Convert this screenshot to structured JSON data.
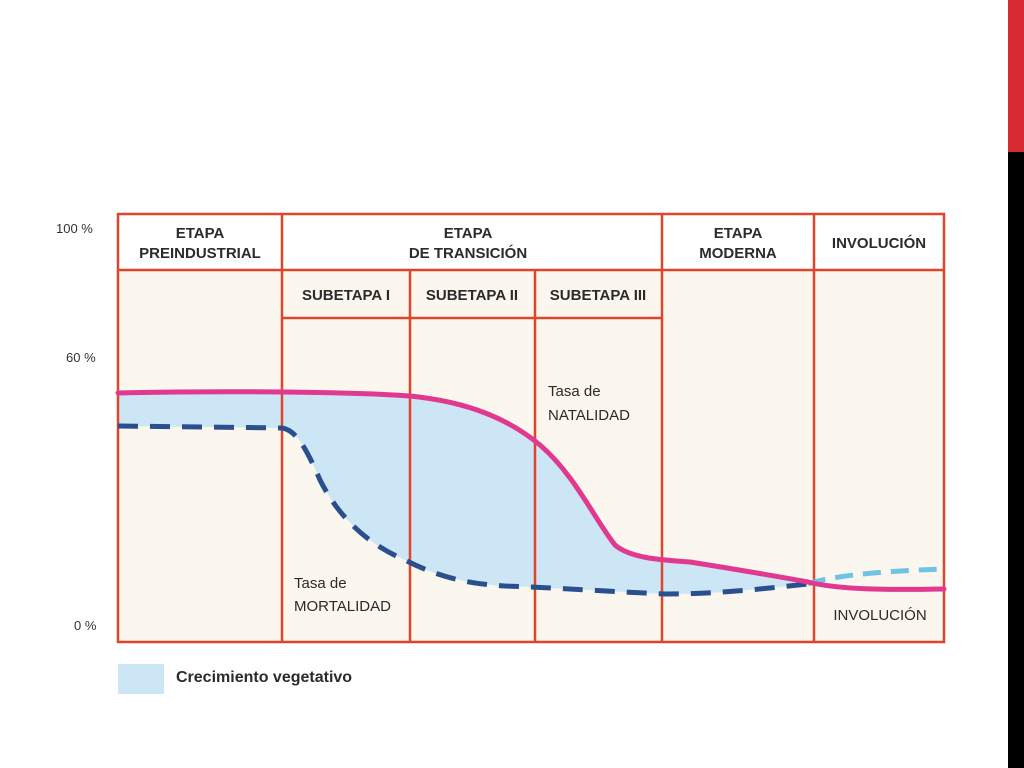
{
  "y_axis": {
    "top": "100 %",
    "mid": "60 %",
    "bottom": "0 %"
  },
  "stages": {
    "preindustrial": [
      "ETAPA",
      "PREINDUSTRIAL"
    ],
    "transicion": [
      "ETAPA",
      "DE TRANSICIÓN"
    ],
    "moderna": [
      "ETAPA",
      "MODERNA"
    ],
    "involucion": "INVOLUCIÓN"
  },
  "substages": [
    "SUBETAPA I",
    "SUBETAPA II",
    "SUBETAPA III"
  ],
  "curves": {
    "natalidad": {
      "line1": "Tasa de",
      "line2": "NATALIDAD",
      "color": "#e0398f"
    },
    "mortalidad": {
      "line1": "Tasa de",
      "line2": "MORTALIDAD",
      "color": "#2a4f8f"
    },
    "involucion_dashed_color": "#6fc3e6"
  },
  "involucion_label": "INVOLUCIÓN",
  "legend": {
    "label": "Crecimiento vegetativo",
    "fill": "#cde6f5"
  },
  "colors": {
    "frame": "#e0452b",
    "column_bg": "#fbf6ee"
  }
}
